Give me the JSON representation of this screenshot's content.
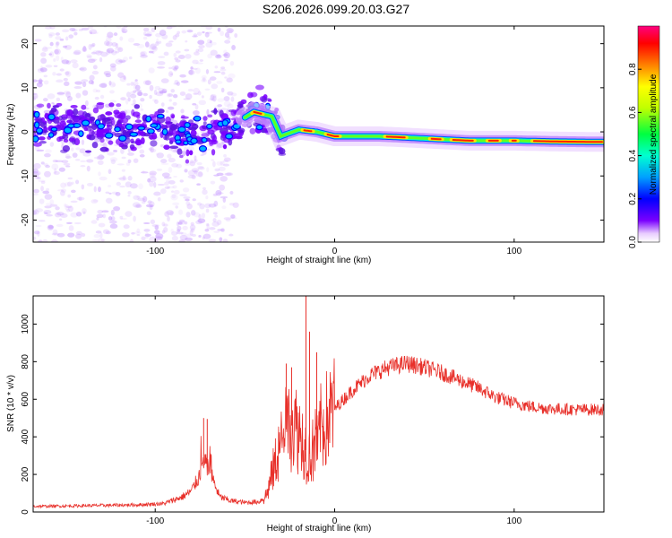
{
  "title": "S206.2026.099.20.03.G27",
  "chart_data": [
    {
      "type": "heatmap",
      "name": "spectrogram",
      "xlabel": "Height of straight line (km)",
      "ylabel": "Frequency (Hz)",
      "xlim": [
        -168,
        150
      ],
      "ylim": [
        -25,
        24
      ],
      "xticks": [
        -100,
        0,
        100
      ],
      "yticks": [
        -20,
        -10,
        0,
        10,
        20
      ],
      "colorbar": {
        "label": "Normalized spectral amplitude",
        "range": [
          0,
          1
        ],
        "ticks": [
          0.0,
          0.2,
          0.4,
          0.6,
          0.8
        ]
      },
      "ridge": [
        {
          "x": -168,
          "f": 1.5
        },
        {
          "x": -120,
          "f": 1.0
        },
        {
          "x": -80,
          "f": -0.5
        },
        {
          "x": -62,
          "f": 1.0
        },
        {
          "x": -55,
          "f": 2.0
        },
        {
          "x": -45,
          "f": 4.5
        },
        {
          "x": -35,
          "f": 3.5
        },
        {
          "x": -30,
          "f": -1.0
        },
        {
          "x": -20,
          "f": 0.5
        },
        {
          "x": -10,
          "f": 0.0
        },
        {
          "x": 0,
          "f": -1.0
        },
        {
          "x": 25,
          "f": -1.0
        },
        {
          "x": 50,
          "f": -1.5
        },
        {
          "x": 75,
          "f": -2.0
        },
        {
          "x": 100,
          "f": -2.0
        },
        {
          "x": 125,
          "f": -2.2
        },
        {
          "x": 150,
          "f": -2.3
        }
      ]
    },
    {
      "type": "line",
      "name": "snr",
      "xlabel": "Height of straight line (km)",
      "ylabel": "SNR (10 * v/v)",
      "xlim": [
        -168,
        150
      ],
      "ylim": [
        0,
        1150
      ],
      "xticks": [
        -100,
        0,
        100
      ],
      "yticks": [
        0,
        200,
        400,
        600,
        800,
        1000
      ],
      "color": "#e8302a",
      "series": [
        {
          "x": -168,
          "y": 30
        },
        {
          "x": -150,
          "y": 32
        },
        {
          "x": -130,
          "y": 35
        },
        {
          "x": -110,
          "y": 38
        },
        {
          "x": -95,
          "y": 45
        },
        {
          "x": -85,
          "y": 80
        },
        {
          "x": -80,
          "y": 110
        },
        {
          "x": -76,
          "y": 180
        },
        {
          "x": -73,
          "y": 260
        },
        {
          "x": -70,
          "y": 230
        },
        {
          "x": -67,
          "y": 150
        },
        {
          "x": -64,
          "y": 80
        },
        {
          "x": -58,
          "y": 60
        },
        {
          "x": -50,
          "y": 50
        },
        {
          "x": -42,
          "y": 55
        },
        {
          "x": -38,
          "y": 90
        },
        {
          "x": -34,
          "y": 230
        },
        {
          "x": -30,
          "y": 380
        },
        {
          "x": -26,
          "y": 460
        },
        {
          "x": -22,
          "y": 460
        },
        {
          "x": -18,
          "y": 390
        },
        {
          "x": -15,
          "y": 300
        },
        {
          "x": -12,
          "y": 330
        },
        {
          "x": -8,
          "y": 440
        },
        {
          "x": -4,
          "y": 500
        },
        {
          "x": 0,
          "y": 550
        },
        {
          "x": 10,
          "y": 650
        },
        {
          "x": 20,
          "y": 730
        },
        {
          "x": 30,
          "y": 770
        },
        {
          "x": 40,
          "y": 790
        },
        {
          "x": 50,
          "y": 770
        },
        {
          "x": 60,
          "y": 740
        },
        {
          "x": 70,
          "y": 700
        },
        {
          "x": 80,
          "y": 660
        },
        {
          "x": 90,
          "y": 610
        },
        {
          "x": 100,
          "y": 580
        },
        {
          "x": 110,
          "y": 560
        },
        {
          "x": 120,
          "y": 550
        },
        {
          "x": 135,
          "y": 545
        },
        {
          "x": 150,
          "y": 545
        }
      ],
      "spikes": [
        {
          "x": -73,
          "y": 500
        },
        {
          "x": -71,
          "y": 495
        },
        {
          "x": -27,
          "y": 790
        },
        {
          "x": -24,
          "y": 770
        },
        {
          "x": -16,
          "y": 1150
        },
        {
          "x": -14,
          "y": 960
        },
        {
          "x": -10,
          "y": 850
        }
      ]
    }
  ]
}
